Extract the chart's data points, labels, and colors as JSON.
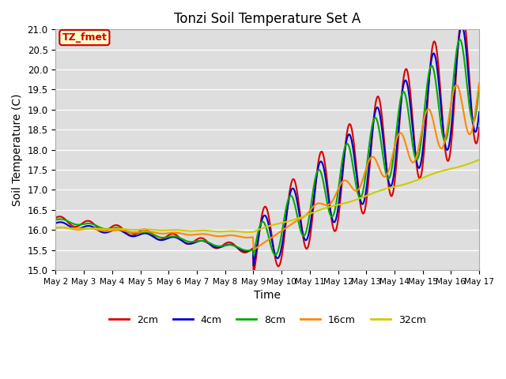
{
  "title": "Tonzi Soil Temperature Set A",
  "xlabel": "Time",
  "ylabel": "Soil Temperature (C)",
  "ylim": [
    15.0,
    21.0
  ],
  "annotation_text": "TZ_fmet",
  "annotation_bg": "#ffffcc",
  "annotation_border": "#cc0000",
  "bg_color": "#dedede",
  "legend_labels": [
    "2cm",
    "4cm",
    "8cm",
    "16cm",
    "32cm"
  ],
  "legend_colors": [
    "#dd0000",
    "#0000cc",
    "#00aa00",
    "#ff8800",
    "#cccc00"
  ],
  "line_widths": [
    1.5,
    1.5,
    1.5,
    1.5,
    1.5
  ],
  "x_tick_labels": [
    "May 2",
    "May 3",
    "May 4",
    "May 5",
    "May 6",
    "May 7",
    "May 8",
    "May 9",
    "May 10",
    "May 11",
    "May 12",
    "May 13",
    "May 14",
    "May 15",
    "May 16",
    "May 17"
  ],
  "n_days": 15,
  "pts_per_day": 48
}
